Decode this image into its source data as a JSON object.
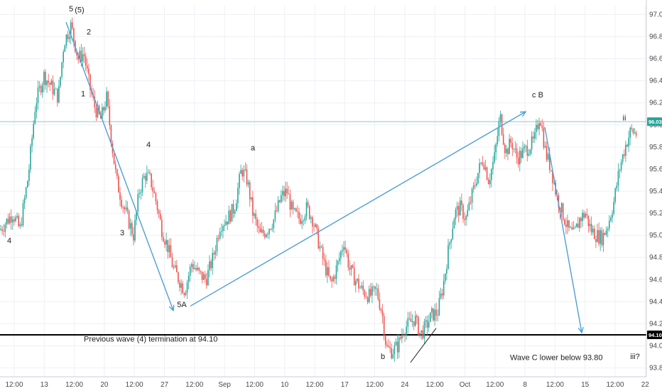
{
  "chart_data": {
    "type": "candlestick",
    "grid": true,
    "x_ticks": [
      "12:00",
      "13",
      "12:00",
      "20",
      "12:00",
      "27",
      "12:00",
      "Sep",
      "12:00",
      "10",
      "12:00",
      "17",
      "12:00",
      "24",
      "12:00",
      "Oct",
      "12:00",
      "8",
      "12:00",
      "15",
      "12:00",
      "22"
    ],
    "y_ticks": [
      "97.00",
      "96.80",
      "96.60",
      "96.40",
      "96.20",
      "96.00",
      "95.80",
      "95.60",
      "95.40",
      "95.20",
      "95.00",
      "94.80",
      "94.60",
      "94.40",
      "94.20",
      "94.00",
      "93.80"
    ],
    "ylim": [
      93.72,
      97.08
    ],
    "x_range": [
      0,
      910
    ],
    "price_path": [
      [
        0,
        95.05
      ],
      [
        18,
        95.2
      ],
      [
        28,
        95.05
      ],
      [
        40,
        95.55
      ],
      [
        50,
        96.2
      ],
      [
        62,
        96.45
      ],
      [
        72,
        96.35
      ],
      [
        82,
        96.25
      ],
      [
        90,
        96.75
      ],
      [
        100,
        96.9
      ],
      [
        110,
        96.6
      ],
      [
        118,
        96.65
      ],
      [
        126,
        96.35
      ],
      [
        134,
        96.15
      ],
      [
        142,
        96.05
      ],
      [
        150,
        96.25
      ],
      [
        158,
        95.8
      ],
      [
        164,
        95.5
      ],
      [
        172,
        95.3
      ],
      [
        180,
        95.15
      ],
      [
        188,
        95.0
      ],
      [
        196,
        95.4
      ],
      [
        204,
        95.55
      ],
      [
        212,
        95.5
      ],
      [
        220,
        95.3
      ],
      [
        228,
        95.05
      ],
      [
        236,
        94.9
      ],
      [
        244,
        94.7
      ],
      [
        252,
        94.6
      ],
      [
        260,
        94.5
      ],
      [
        270,
        94.75
      ],
      [
        280,
        94.65
      ],
      [
        290,
        94.6
      ],
      [
        300,
        94.8
      ],
      [
        310,
        95.1
      ],
      [
        320,
        95.15
      ],
      [
        330,
        95.25
      ],
      [
        340,
        95.6
      ],
      [
        348,
        95.5
      ],
      [
        356,
        95.2
      ],
      [
        366,
        95.0
      ],
      [
        376,
        95.05
      ],
      [
        386,
        95.15
      ],
      [
        396,
        95.35
      ],
      [
        404,
        95.4
      ],
      [
        412,
        95.2
      ],
      [
        422,
        95.15
      ],
      [
        432,
        95.25
      ],
      [
        440,
        95.15
      ],
      [
        448,
        94.95
      ],
      [
        456,
        94.75
      ],
      [
        466,
        94.55
      ],
      [
        476,
        94.75
      ],
      [
        484,
        94.95
      ],
      [
        492,
        94.7
      ],
      [
        500,
        94.6
      ],
      [
        510,
        94.5
      ],
      [
        520,
        94.45
      ],
      [
        530,
        94.5
      ],
      [
        538,
        94.3
      ],
      [
        544,
        93.98
      ],
      [
        552,
        93.95
      ],
      [
        560,
        94.0
      ],
      [
        568,
        94.15
      ],
      [
        576,
        94.2
      ],
      [
        584,
        94.25
      ],
      [
        592,
        94.1
      ],
      [
        600,
        94.18
      ],
      [
        608,
        94.28
      ],
      [
        616,
        94.3
      ],
      [
        624,
        94.55
      ],
      [
        632,
        94.9
      ],
      [
        640,
        95.2
      ],
      [
        648,
        95.25
      ],
      [
        656,
        95.15
      ],
      [
        664,
        95.35
      ],
      [
        672,
        95.55
      ],
      [
        680,
        95.7
      ],
      [
        688,
        95.5
      ],
      [
        696,
        95.7
      ],
      [
        704,
        96.08
      ],
      [
        712,
        95.75
      ],
      [
        720,
        95.85
      ],
      [
        728,
        95.7
      ],
      [
        736,
        95.75
      ],
      [
        744,
        95.8
      ],
      [
        752,
        95.85
      ],
      [
        760,
        96.1
      ],
      [
        768,
        95.75
      ],
      [
        776,
        95.6
      ],
      [
        784,
        95.35
      ],
      [
        792,
        95.2
      ],
      [
        800,
        95.05
      ],
      [
        808,
        95.0
      ],
      [
        816,
        95.15
      ],
      [
        824,
        95.2
      ],
      [
        832,
        95.05
      ],
      [
        840,
        95.0
      ],
      [
        848,
        94.98
      ],
      [
        856,
        95.1
      ],
      [
        864,
        95.3
      ],
      [
        872,
        95.6
      ],
      [
        880,
        95.8
      ],
      [
        888,
        95.95
      ],
      [
        896,
        95.92
      ]
    ],
    "current_price": "96.03",
    "horizontal_levels": [
      {
        "value": 96.03,
        "color": "#9fd6cf",
        "label": "96.03"
      },
      {
        "value": 94.1,
        "color": "#000000",
        "label": "94.10"
      }
    ],
    "wave_labels": [
      {
        "text": "5",
        "x": 100,
        "price": 97.03
      },
      {
        "text": "(5)",
        "x": 112,
        "price": 97.02
      },
      {
        "text": "2",
        "x": 125,
        "price": 96.82
      },
      {
        "text": "1",
        "x": 117,
        "price": 96.26
      },
      {
        "text": "4",
        "x": 209,
        "price": 95.8
      },
      {
        "text": "3",
        "x": 172,
        "price": 95.0
      },
      {
        "text": "4",
        "x": 13,
        "price": 94.93
      },
      {
        "text": "a",
        "x": 356,
        "price": 95.77
      },
      {
        "text": "5A",
        "x": 256,
        "price": 94.35
      },
      {
        "text": "c B",
        "x": 757,
        "price": 96.25
      },
      {
        "text": "ii",
        "x": 879,
        "price": 96.04
      },
      {
        "text": "b",
        "x": 539,
        "price": 93.88
      },
      {
        "text": "iii?",
        "x": 894,
        "price": 93.88
      }
    ],
    "arrows": [
      {
        "from": [
          93,
          96.93
        ],
        "to": [
          244,
          94.32
        ],
        "color": "#4e9fd6"
      },
      {
        "from": [
          268,
          94.36
        ],
        "to": [
          740,
          96.12
        ],
        "color": "#4e9fd6"
      },
      {
        "from": [
          767,
          95.98
        ],
        "to": [
          819,
          94.12
        ],
        "color": "#4e9fd6"
      }
    ],
    "trendline": {
      "from": [
        578,
        93.85
      ],
      "to": [
        614,
        94.16
      ],
      "color": "#222222"
    },
    "annotations": [
      {
        "text": "Previous wave (4) termination at 94.10",
        "x": 118,
        "price": 94.04
      },
      {
        "text": "Wave C lower below 93.80",
        "x": 718,
        "price": 93.87
      }
    ],
    "colors": {
      "up": "#26a69a",
      "down": "#ef5350",
      "arrow": "#4e9fd6"
    }
  }
}
